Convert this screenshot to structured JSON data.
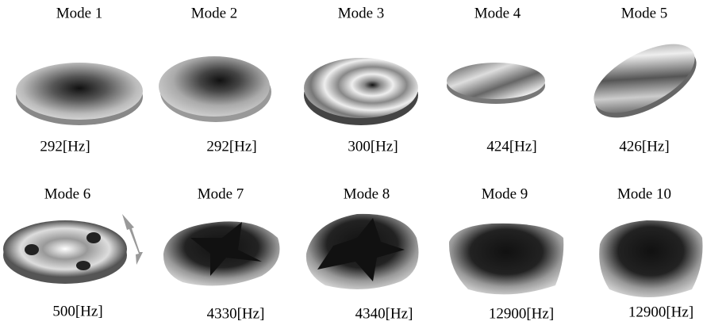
{
  "modes": [
    {
      "label": "Mode 1",
      "frequency": "292[Hz]"
    },
    {
      "label": "Mode 2",
      "frequency": "292[Hz]"
    },
    {
      "label": "Mode 3",
      "frequency": "300[Hz]"
    },
    {
      "label": "Mode 4",
      "frequency": "424[Hz]"
    },
    {
      "label": "Mode 5",
      "frequency": "426[Hz]"
    },
    {
      "label": "Mode 6",
      "frequency": "500[Hz]"
    },
    {
      "label": "Mode 7",
      "frequency": "4330[Hz]"
    },
    {
      "label": "Mode 8",
      "frequency": "4340[Hz]"
    },
    {
      "label": "Mode 9",
      "frequency": "12900[Hz]"
    },
    {
      "label": "Mode 10",
      "frequency": "12900[Hz]"
    }
  ]
}
